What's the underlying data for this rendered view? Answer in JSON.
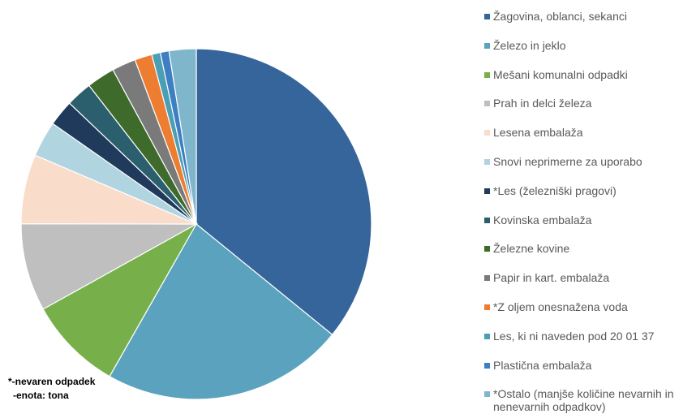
{
  "chart_data": {
    "type": "pie",
    "categories": [
      "Žagovina, oblanci, sekanci",
      "Železo in jeklo",
      "Mešani komunalni odpadki",
      "Prah in delci železa",
      "Lesena embalaža",
      "Snovi neprimerne za uporabo",
      "*Les (železniški pragovi)",
      "Kovinska embalaža",
      "Železne kovine",
      "Papir in kart. embalaža",
      "*Z oljem onesnažena voda",
      "Les, ki ni naveden pod 20 01 37",
      "Plastična embalaža",
      "*Ostalo (manjše količine nevarnih in nenevarnih odpadkov)"
    ],
    "values": [
      35.9,
      22.4,
      8.7,
      8.1,
      6.4,
      3.3,
      2.4,
      2.4,
      2.6,
      2.2,
      1.6,
      0.8,
      0.8,
      2.5
    ],
    "colors": [
      "#35659a",
      "#5aa2bd",
      "#77b04b",
      "#bfbfbf",
      "#fadccb",
      "#b1d4e1",
      "#1f3a5a",
      "#2c5f6e",
      "#3e6a2b",
      "#7a7a7a",
      "#ed7d31",
      "#4a9fb5",
      "#3d7fc2",
      "#7fb6cc"
    ],
    "annotations": [
      "*-nevaren odpadek",
      "-enota: tona"
    ]
  }
}
